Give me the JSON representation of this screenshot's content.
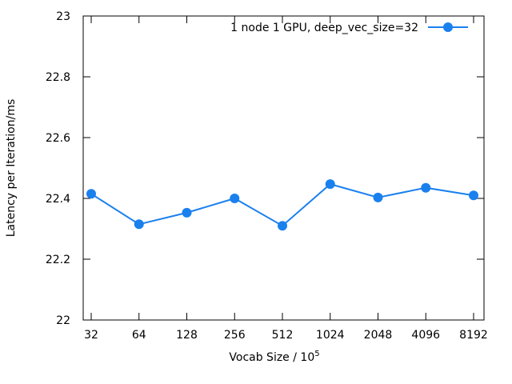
{
  "chart_data": {
    "type": "line",
    "categories": [
      "32",
      "64",
      "128",
      "256",
      "512",
      "1024",
      "2048",
      "4096",
      "8192"
    ],
    "series": [
      {
        "name": "1 node 1 GPU, deep_vec_size=32",
        "values": [
          22.415,
          22.315,
          22.353,
          22.4,
          22.31,
          22.447,
          22.403,
          22.435,
          22.41
        ],
        "color": "#1a80ee"
      }
    ],
    "xlabel": "Vocab Size / 10",
    "xlabel_sup": "5",
    "ylabel": "Latency per Iteration/ms",
    "ylim": [
      22,
      23
    ],
    "yticks": [
      "22",
      "22.2",
      "22.4",
      "22.6",
      "22.8",
      "23"
    ],
    "legend_position": "top-right",
    "grid": false
  }
}
